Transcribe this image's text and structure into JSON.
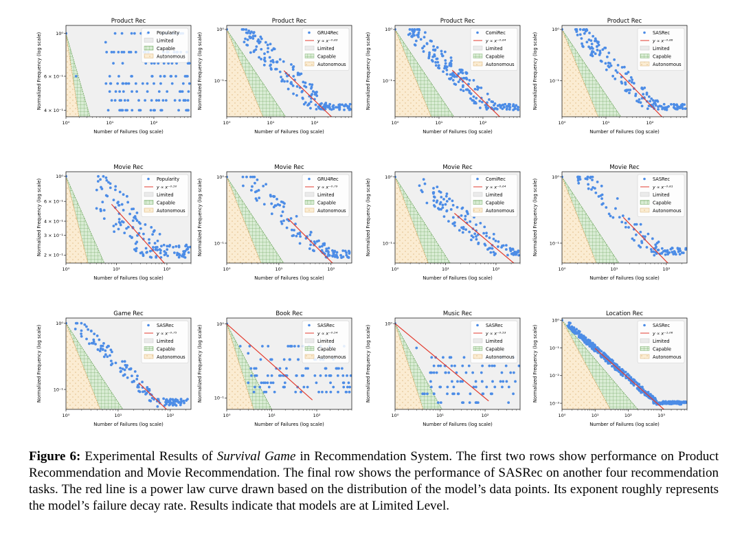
{
  "caption": {
    "label": "Figure 6:",
    "text_before": " Experimental Results of ",
    "italic": "Survival Game",
    "text_after": " in Recommendation System. The first two rows show performance on Product Recommendation and Movie Recommendation. The final row shows the performance of SASRec on another four recommendation tasks. The red line is a power law curve drawn based on the distribution of the model’s data points. Its exponent roughly represents the model’s failure decay rate. Results indicate that models are at Limited Level."
  },
  "colors": {
    "points": "#4c8ce6",
    "fit": "#e33b2e",
    "plot_bg": "#f0f0f0",
    "limited_fill": "#ebebeb",
    "capable_fill": "#d9ecd4",
    "capable_edge": "#6aa35a",
    "autonomous_fill": "#fbecd2",
    "autonomous_edge": "#d2a25c"
  },
  "chart_data": [
    {
      "type": "scatter",
      "title": "Product Rec",
      "xlabel": "Number of Failures (log scale)",
      "ylabel": "Normalized Frequency (log scale)",
      "xlim": [
        1,
        700
      ],
      "ylim": [
        0.37,
        1.1
      ],
      "yticks": [
        {
          "v": 1,
          "label": "10⁰"
        },
        {
          "v": 0.6,
          "label": "6 × 10⁻¹"
        },
        {
          "v": 0.4,
          "label": "4 × 10⁻¹"
        }
      ],
      "legend": {
        "series": "Popularity",
        "fit": "",
        "limited": "Limited",
        "capable": "Capable",
        "autonomous": "Autonomous"
      },
      "fit_exponent": null,
      "fit_range": null,
      "points_model": {
        "kind": "flat",
        "levels": [
          0.4,
          0.45,
          0.5,
          0.55,
          0.6,
          0.7,
          0.8,
          1.0
        ],
        "xmin": 8,
        "xmax": 650,
        "n": 130,
        "extra": [
          [
            1,
            1
          ],
          [
            1.7,
            0.6
          ],
          [
            8,
            0.9
          ],
          [
            12,
            0.7
          ],
          [
            30,
            0.8
          ]
        ]
      }
    },
    {
      "type": "scatter",
      "title": "Product Rec",
      "xlabel": "Number of Failures (log scale)",
      "ylabel": "Normalized Frequency (log scale)",
      "xlim": [
        1,
        700
      ],
      "ylim": [
        0.02,
        1.2
      ],
      "yticks": [
        {
          "v": 1,
          "label": "10⁰"
        },
        {
          "v": 0.1,
          "label": "10⁻¹"
        }
      ],
      "legend": {
        "series": "GRU4Rec",
        "fit": "y ∝ x⁻⁰·⁸³",
        "limited": "Limited",
        "capable": "Capable",
        "autonomous": "Autonomous"
      },
      "fit_exponent": -0.83,
      "fit_range": [
        20,
        550
      ],
      "points_model": {
        "kind": "power",
        "a": 1.9,
        "k": -0.83,
        "xmin": 2,
        "xmax": 650,
        "n": 180,
        "spread": 0.55,
        "floor": 0.027
      }
    },
    {
      "type": "scatter",
      "title": "Product Rec",
      "xlabel": "Number of Failures (log scale)",
      "ylabel": "Normalized Frequency (log scale)",
      "xlim": [
        1,
        700
      ],
      "ylim": [
        0.02,
        1.2
      ],
      "yticks": [
        {
          "v": 1,
          "label": "10⁰"
        },
        {
          "v": 0.1,
          "label": "10⁻¹"
        }
      ],
      "legend": {
        "series": "ComiRec",
        "fit": "y ∝ x⁻⁰·⁸⁴",
        "limited": "Limited",
        "capable": "Capable",
        "autonomous": "Autonomous"
      },
      "fit_exponent": -0.84,
      "fit_range": [
        20,
        600
      ],
      "points_model": {
        "kind": "power",
        "a": 2.0,
        "k": -0.84,
        "xmin": 2,
        "xmax": 650,
        "n": 200,
        "spread": 0.45,
        "floor": 0.027
      }
    },
    {
      "type": "scatter",
      "title": "Product Rec",
      "xlabel": "Number of Failures (log scale)",
      "ylabel": "Normalized Frequency (log scale)",
      "xlim": [
        1,
        700
      ],
      "ylim": [
        0.02,
        1.2
      ],
      "yticks": [
        {
          "v": 1,
          "label": "10⁰"
        },
        {
          "v": 0.1,
          "label": "10⁻¹"
        }
      ],
      "legend": {
        "series": "SASRec",
        "fit": "y ∝ x⁻⁰·⁸⁸",
        "limited": "Limited",
        "capable": "Capable",
        "autonomous": "Autonomous"
      },
      "fit_exponent": -0.88,
      "fit_range": [
        20,
        400
      ],
      "points_model": {
        "kind": "power",
        "a": 2.0,
        "k": -0.88,
        "xmin": 2,
        "xmax": 650,
        "n": 170,
        "spread": 0.45,
        "floor": 0.027
      }
    },
    {
      "type": "scatter",
      "title": "Movie Rec",
      "xlabel": "Number of Failures (log scale)",
      "ylabel": "Normalized Frequency (log scale)",
      "xlim": [
        1,
        300
      ],
      "ylim": [
        0.17,
        1.1
      ],
      "yticks": [
        {
          "v": 1,
          "label": "10⁰"
        },
        {
          "v": 0.6,
          "label": "6 × 10⁻¹"
        },
        {
          "v": 0.4,
          "label": "4 × 10⁻¹"
        },
        {
          "v": 0.3,
          "label": "3 × 10⁻¹"
        },
        {
          "v": 0.2,
          "label": "2 × 10⁻¹"
        }
      ],
      "legend": {
        "series": "Popularity",
        "fit": "y ∝ x⁻⁰·⁵⁰",
        "limited": "Limited",
        "capable": "Capable",
        "autonomous": "Autonomous"
      },
      "fit_exponent": -0.5,
      "fit_range": [
        8,
        250
      ],
      "points_model": {
        "kind": "power",
        "a": 1.6,
        "k": -0.5,
        "xmin": 4,
        "xmax": 290,
        "n": 150,
        "spread": 0.45,
        "floor": 0.19
      }
    },
    {
      "type": "scatter",
      "title": "Movie Rec",
      "xlabel": "Number of Failures (log scale)",
      "ylabel": "Normalized Frequency (log scale)",
      "xlim": [
        1,
        250
      ],
      "ylim": [
        0.05,
        1.2
      ],
      "yticks": [
        {
          "v": 1,
          "label": "10⁰"
        },
        {
          "v": 0.1,
          "label": "10⁻¹"
        }
      ],
      "legend": {
        "series": "GRU4Rec",
        "fit": "y ∝ x⁻⁰·⁷⁹",
        "limited": "Limited",
        "capable": "Capable",
        "autonomous": "Autonomous"
      },
      "fit_exponent": -0.79,
      "fit_range": [
        15,
        150
      ],
      "points_model": {
        "kind": "power",
        "a": 2.0,
        "k": -0.79,
        "xmin": 2,
        "xmax": 240,
        "n": 120,
        "spread": 0.4,
        "floor": 0.06
      }
    },
    {
      "type": "scatter",
      "title": "Movie Rec",
      "xlabel": "Number of Failures (log scale)",
      "ylabel": "Normalized Frequency (log scale)",
      "xlim": [
        1,
        300
      ],
      "ylim": [
        0.05,
        1.2
      ],
      "yticks": [
        {
          "v": 1,
          "label": "10⁰"
        },
        {
          "v": 0.1,
          "label": "10⁻¹"
        }
      ],
      "legend": {
        "series": "ComiRec",
        "fit": "y ∝ x⁻⁰·⁶⁴",
        "limited": "Limited",
        "capable": "Capable",
        "autonomous": "Autonomous"
      },
      "fit_exponent": -0.64,
      "fit_range": [
        15,
        250
      ],
      "points_model": {
        "kind": "power",
        "a": 1.6,
        "k": -0.64,
        "xmin": 3,
        "xmax": 290,
        "n": 130,
        "spread": 0.4,
        "floor": 0.065
      }
    },
    {
      "type": "scatter",
      "title": "Movie Rec",
      "xlabel": "Number of Failures (log scale)",
      "ylabel": "Normalized Frequency (log scale)",
      "xlim": [
        1,
        250
      ],
      "ylim": [
        0.05,
        1.2
      ],
      "yticks": [
        {
          "v": 1,
          "label": "10⁰"
        },
        {
          "v": 0.1,
          "label": "10⁻¹"
        }
      ],
      "legend": {
        "series": "SASRec",
        "fit": "y ∝ x⁻⁰·⁸¹",
        "limited": "Limited",
        "capable": "Capable",
        "autonomous": "Autonomous"
      },
      "fit_exponent": -0.81,
      "fit_range": [
        15,
        220
      ],
      "points_model": {
        "kind": "power",
        "a": 2.2,
        "k": -0.81,
        "xmin": 2,
        "xmax": 240,
        "n": 110,
        "spread": 0.4,
        "floor": 0.065
      }
    },
    {
      "type": "scatter",
      "title": "Game Rec",
      "xlabel": "Number of Failures (log scale)",
      "ylabel": "Normalized Frequency (log scale)",
      "xlim": [
        1,
        250
      ],
      "ylim": [
        0.05,
        1.2
      ],
      "yticks": [
        {
          "v": 1,
          "label": "10⁰"
        },
        {
          "v": 0.1,
          "label": "10⁻¹"
        }
      ],
      "legend": {
        "series": "SASRec",
        "fit": "y ∝ x⁻⁰·⁷⁵",
        "limited": "Limited",
        "capable": "Capable",
        "autonomous": "Autonomous"
      },
      "fit_exponent": -0.75,
      "fit_range": [
        25,
        240
      ],
      "points_model": {
        "kind": "power",
        "a": 1.4,
        "k": -0.75,
        "xmin": 1.5,
        "xmax": 240,
        "n": 140,
        "spread": 0.25,
        "floor": 0.055
      }
    },
    {
      "type": "scatter",
      "title": "Book Rec",
      "xlabel": "Number of Failures (log scale)",
      "ylabel": "Normalized Frequency (log scale)",
      "xlim": [
        1,
        600
      ],
      "ylim": [
        0.07,
        1.2
      ],
      "yticks": [
        {
          "v": 1,
          "label": "10⁰"
        },
        {
          "v": 0.1,
          "label": "10⁻¹"
        }
      ],
      "legend": {
        "series": "SASRec",
        "fit": "y ∝ x⁻⁰·⁵⁴",
        "limited": "Limited",
        "capable": "Capable",
        "autonomous": "Autonomous"
      },
      "fit_exponent": -0.54,
      "fit_range": [
        1,
        80
      ],
      "points_model": {
        "kind": "flat",
        "levels": [
          0.12,
          0.14,
          0.16,
          0.2,
          0.25,
          0.33,
          0.5
        ],
        "xmin": 3,
        "xmax": 580,
        "n": 110,
        "extra": [
          [
            1,
            1
          ],
          [
            2,
            0.5
          ],
          [
            3,
            0.4
          ]
        ]
      }
    },
    {
      "type": "scatter",
      "title": "Music Rec",
      "xlabel": "Number of Failures (log scale)",
      "ylabel": "Normalized Frequency (log scale)",
      "xlim": [
        1,
        600
      ],
      "ylim": [
        0.06,
        1.2
      ],
      "yticks": [
        {
          "v": 1,
          "label": "10⁰"
        }
      ],
      "legend": {
        "series": "SASRec",
        "fit": "y ∝ x⁻⁰·⁵³",
        "limited": "Limited",
        "capable": "Capable",
        "autonomous": "Autonomous"
      },
      "fit_exponent": -0.53,
      "fit_range": [
        1,
        120
      ],
      "points_model": {
        "kind": "flat",
        "levels": [
          0.075,
          0.1,
          0.125,
          0.15,
          0.2,
          0.25,
          0.33
        ],
        "xmin": 4,
        "xmax": 580,
        "n": 90,
        "extra": [
          [
            1,
            1
          ],
          [
            3,
            0.45
          ],
          [
            8,
            0.33
          ]
        ]
      }
    },
    {
      "type": "scatter",
      "title": "Location Rec",
      "xlabel": "Number of Failures (log scale)",
      "ylabel": "Normalized Frequency (log scale)",
      "xlim": [
        1,
        6000
      ],
      "ylim": [
        0.0006,
        1.2
      ],
      "yticks": [
        {
          "v": 1,
          "label": "10⁰"
        },
        {
          "v": 0.1,
          "label": "10⁻¹"
        },
        {
          "v": 0.01,
          "label": "10⁻²"
        },
        {
          "v": 0.001,
          "label": "10⁻³"
        }
      ],
      "legend": {
        "series": "SASRec",
        "fit": "y ∝ x⁻¹·⁰⁶",
        "limited": "Limited",
        "capable": "Capable",
        "autonomous": "Autonomous"
      },
      "fit_exponent": -1.06,
      "fit_range": [
        10,
        5500
      ],
      "points_model": {
        "kind": "power",
        "a": 1.1,
        "k": -1.06,
        "xmin": 1.5,
        "xmax": 5800,
        "n": 420,
        "spread": 0.25,
        "floor": 0.0009
      }
    }
  ]
}
